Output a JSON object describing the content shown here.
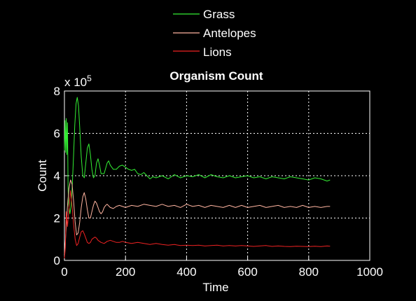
{
  "chart_data": {
    "type": "line",
    "title": "Organism Count",
    "xlabel": "Time",
    "ylabel": "Count",
    "y_multiplier": "x 10",
    "y_exponent": "5",
    "xlim": [
      0,
      1000
    ],
    "ylim": [
      0,
      8
    ],
    "x_ticks": [
      "0",
      "200",
      "400",
      "600",
      "800",
      "1000"
    ],
    "y_ticks": [
      "0",
      "2",
      "4",
      "6",
      "8"
    ],
    "grid": true,
    "legend_position": "top",
    "series": [
      {
        "name": "Grass",
        "color": "#33ee33",
        "x": [
          0,
          2,
          4,
          6,
          8,
          10,
          12,
          14,
          18,
          22,
          26,
          30,
          34,
          38,
          42,
          46,
          50,
          55,
          60,
          65,
          70,
          75,
          80,
          85,
          90,
          95,
          100,
          105,
          110,
          115,
          120,
          130,
          140,
          145,
          150,
          160,
          170,
          180,
          190,
          200,
          210,
          220,
          230,
          240,
          250,
          260,
          270,
          280,
          290,
          300,
          320,
          340,
          360,
          380,
          400,
          420,
          440,
          460,
          480,
          500,
          520,
          540,
          560,
          580,
          600,
          620,
          640,
          660,
          680,
          700,
          720,
          740,
          760,
          780,
          800,
          820,
          840,
          860,
          870
        ],
        "y": [
          5.2,
          6.6,
          5.1,
          6.7,
          5.0,
          6.5,
          3.4,
          2.6,
          2.2,
          2.6,
          3.6,
          5.0,
          6.4,
          7.4,
          7.7,
          7.3,
          6.3,
          4.9,
          4.0,
          3.9,
          4.6,
          5.3,
          5.5,
          5.0,
          4.3,
          3.9,
          4.0,
          4.6,
          4.8,
          4.5,
          4.1,
          4.1,
          4.6,
          4.7,
          4.5,
          4.3,
          4.3,
          4.45,
          4.5,
          4.4,
          4.3,
          4.25,
          4.3,
          4.1,
          4.05,
          4.15,
          4.0,
          3.85,
          3.95,
          3.9,
          4.0,
          3.85,
          4.05,
          3.9,
          4.0,
          3.95,
          4.05,
          3.9,
          4.05,
          3.95,
          3.9,
          4.0,
          3.9,
          3.95,
          4.0,
          3.9,
          3.95,
          3.85,
          3.95,
          3.9,
          3.85,
          3.95,
          3.9,
          3.85,
          3.8,
          3.9,
          3.85,
          3.75,
          3.8
        ]
      },
      {
        "name": "Antelopes",
        "color": "#ffb4a0",
        "x": [
          0,
          3,
          6,
          10,
          15,
          20,
          25,
          30,
          35,
          40,
          45,
          50,
          55,
          60,
          65,
          70,
          75,
          80,
          85,
          90,
          95,
          100,
          105,
          110,
          115,
          120,
          125,
          130,
          135,
          140,
          150,
          160,
          170,
          180,
          190,
          200,
          220,
          240,
          260,
          280,
          300,
          320,
          340,
          360,
          380,
          400,
          420,
          440,
          460,
          480,
          500,
          520,
          540,
          560,
          580,
          600,
          620,
          640,
          660,
          680,
          700,
          720,
          740,
          760,
          780,
          800,
          820,
          840,
          860,
          870
        ],
        "y": [
          0.3,
          0.9,
          1.6,
          2.6,
          3.4,
          3.8,
          3.6,
          2.8,
          1.8,
          1.2,
          1.3,
          1.8,
          2.5,
          3.0,
          3.2,
          2.9,
          2.4,
          2.0,
          2.0,
          2.3,
          2.6,
          2.8,
          2.7,
          2.5,
          2.3,
          2.2,
          2.3,
          2.5,
          2.6,
          2.65,
          2.5,
          2.45,
          2.55,
          2.6,
          2.55,
          2.5,
          2.6,
          2.55,
          2.65,
          2.6,
          2.55,
          2.65,
          2.55,
          2.6,
          2.5,
          2.65,
          2.55,
          2.6,
          2.5,
          2.6,
          2.55,
          2.5,
          2.6,
          2.5,
          2.6,
          2.5,
          2.55,
          2.6,
          2.5,
          2.55,
          2.6,
          2.5,
          2.55,
          2.5,
          2.6,
          2.5,
          2.55,
          2.5,
          2.55,
          2.55
        ]
      },
      {
        "name": "Lions",
        "color": "#ee2222",
        "x": [
          0,
          3,
          6,
          10,
          15,
          20,
          25,
          30,
          35,
          40,
          45,
          50,
          55,
          60,
          65,
          70,
          75,
          80,
          85,
          90,
          95,
          100,
          105,
          110,
          120,
          130,
          140,
          150,
          160,
          170,
          180,
          190,
          200,
          220,
          240,
          260,
          280,
          300,
          320,
          340,
          360,
          380,
          400,
          420,
          440,
          460,
          480,
          500,
          520,
          540,
          560,
          580,
          600,
          620,
          640,
          660,
          680,
          700,
          720,
          740,
          760,
          780,
          800,
          820,
          840,
          860,
          870
        ],
        "y": [
          0.1,
          0.6,
          2.3,
          1.6,
          2.5,
          3.3,
          2.6,
          1.7,
          1.0,
          0.7,
          0.8,
          1.1,
          1.35,
          1.4,
          1.25,
          1.05,
          0.85,
          0.8,
          0.85,
          1.0,
          1.05,
          1.1,
          1.05,
          0.95,
          0.85,
          0.8,
          0.9,
          0.95,
          0.9,
          0.85,
          0.85,
          0.9,
          0.85,
          0.8,
          0.85,
          0.8,
          0.75,
          0.8,
          0.75,
          0.72,
          0.75,
          0.7,
          0.72,
          0.7,
          0.72,
          0.68,
          0.7,
          0.72,
          0.68,
          0.7,
          0.68,
          0.7,
          0.68,
          0.66,
          0.68,
          0.7,
          0.66,
          0.68,
          0.66,
          0.65,
          0.67,
          0.66,
          0.65,
          0.67,
          0.65,
          0.68,
          0.67
        ]
      }
    ]
  }
}
